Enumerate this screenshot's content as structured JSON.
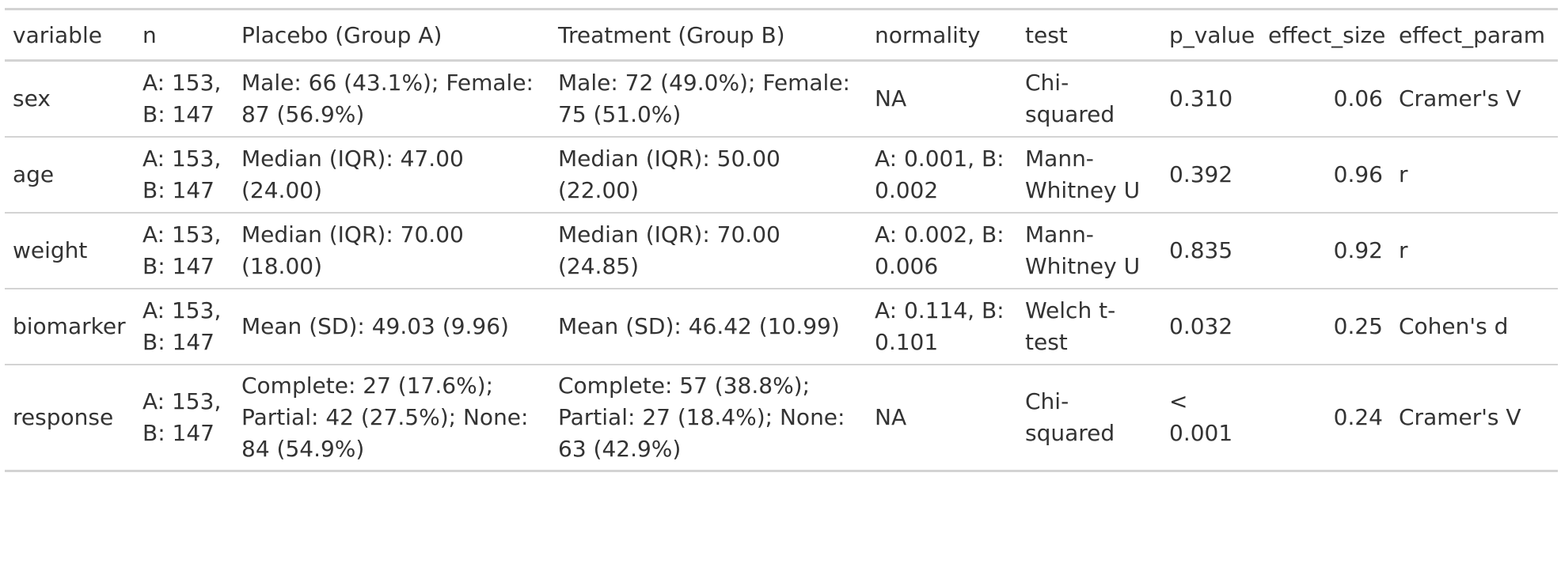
{
  "table": {
    "headers": {
      "variable": "variable",
      "n": "n",
      "placebo": "Placebo (Group A)",
      "treatment": "Treatment (Group B)",
      "normality": "normality",
      "test": "test",
      "p_value": "p_value",
      "effect_size": "effect_size",
      "effect_param": "effect_param"
    },
    "rows": [
      {
        "variable": "sex",
        "n": "A: 153, B: 147",
        "placebo": "Male: 66 (43.1%); Female: 87 (56.9%)",
        "treatment": "Male: 72 (49.0%); Female: 75 (51.0%)",
        "normality": "NA",
        "test": "Chi-squared",
        "p_value": "0.310",
        "effect_size": "0.06",
        "effect_param": "Cramer's V"
      },
      {
        "variable": "age",
        "n": "A: 153, B: 147",
        "placebo": "Median (IQR): 47.00 (24.00)",
        "treatment": "Median (IQR): 50.00 (22.00)",
        "normality": "A: 0.001, B: 0.002",
        "test": "Mann-Whitney U",
        "p_value": "0.392",
        "effect_size": "0.96",
        "effect_param": "r"
      },
      {
        "variable": "weight",
        "n": "A: 153, B: 147",
        "placebo": "Median (IQR): 70.00 (18.00)",
        "treatment": "Median (IQR): 70.00 (24.85)",
        "normality": "A: 0.002, B: 0.006",
        "test": "Mann-Whitney U",
        "p_value": "0.835",
        "effect_size": "0.92",
        "effect_param": "r"
      },
      {
        "variable": "biomarker",
        "n": "A: 153, B: 147",
        "placebo": "Mean (SD): 49.03 (9.96)",
        "treatment": "Mean (SD): 46.42 (10.99)",
        "normality": "A: 0.114, B: 0.101",
        "test": "Welch t-test",
        "p_value": "0.032",
        "effect_size": "0.25",
        "effect_param": "Cohen's d"
      },
      {
        "variable": "response",
        "n": "A: 153, B: 147",
        "placebo": "Complete: 27 (17.6%); Partial: 42 (27.5%); None: 84 (54.9%)",
        "treatment": "Complete: 57 (38.8%); Partial: 27 (18.4%); None: 63 (42.9%)",
        "normality": "NA",
        "test": "Chi-squared",
        "p_value": "< 0.001",
        "effect_size": "0.24",
        "effect_param": "Cramer's V"
      }
    ]
  }
}
